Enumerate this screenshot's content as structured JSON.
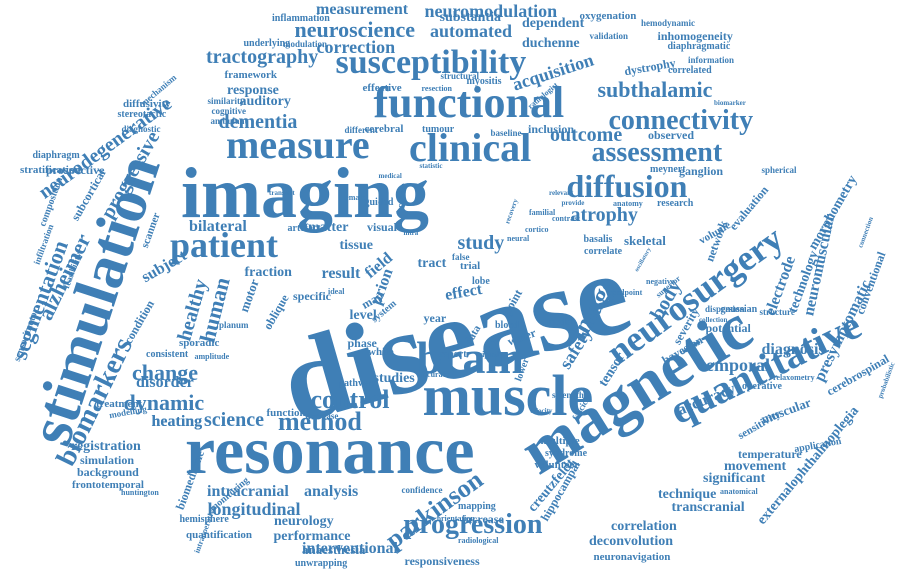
{
  "cloud": {
    "color": "#3f7fb6",
    "words": [
      "disease",
      "imaging",
      "resonance",
      "magnetic",
      "stimulation",
      "muscle",
      "functional",
      "brain",
      "clinical",
      "measure",
      "quantitative",
      "neurosurgery",
      "patient",
      "susceptibility",
      "diffusion",
      "assessment",
      "connectivity",
      "parkinson",
      "progression",
      "biomarkers",
      "method",
      "control",
      "segmentation",
      "alzheimer",
      "neuroscience",
      "measurement",
      "neuromodulation",
      "tractography",
      "neurodegenerative",
      "progressive",
      "dementia",
      "subthalamic",
      "acquisition",
      "outcome",
      "automated",
      "correction",
      "atrophy",
      "image",
      "study",
      "healthy",
      "human",
      "change",
      "dynamic",
      "science",
      "heating",
      "intracranial",
      "analysis",
      "longitudinal",
      "interventional",
      "technique",
      "significant",
      "presymptomatic",
      "neuromuscular",
      "electrode",
      "technology",
      "morphometry",
      "temporal",
      "diagnosis",
      "accuracy",
      "safety",
      "tensor",
      "body",
      "registration",
      "simulation",
      "background",
      "frontotemporal",
      "biomedicine",
      "monitoring",
      "hemisphere",
      "quantification",
      "performance",
      "neurology",
      "anaesthesia",
      "unwrapping",
      "responsiveness",
      "deconvolution",
      "correlation",
      "neuronavigation",
      "transcranial",
      "movement",
      "temperature",
      "externalophthalmoplegia",
      "cerebrospinal",
      "conventional",
      "dystrophy",
      "duchenne",
      "dependent",
      "substantia",
      "inhomogeneity",
      "inflammation",
      "oxygenation",
      "hemodynamic",
      "underlying",
      "modulation",
      "framework",
      "response",
      "auditory",
      "effective",
      "structural",
      "myositis",
      "inclusion",
      "baseline",
      "tumour",
      "cerebral",
      "different",
      "observed",
      "ganglion",
      "meynert",
      "spherical",
      "research",
      "network",
      "evaluation",
      "volume",
      "muscular",
      "sensitivity",
      "application",
      "operative",
      "bayesian",
      "severity",
      "potential",
      "gaussian",
      "structure",
      "skeletal",
      "basalis",
      "correlate",
      "tissue",
      "matter",
      "bilateral",
      "subject",
      "fraction",
      "motor",
      "specific",
      "result",
      "field",
      "prion",
      "tract",
      "trial",
      "lobe",
      "effect",
      "data",
      "water",
      "model",
      "phase",
      "white",
      "report",
      "signal",
      "blood",
      "multiple",
      "syndrome",
      "volunteer",
      "studies",
      "pathway",
      "function",
      "decrease",
      "heating",
      "sporadic",
      "consistent",
      "condition",
      "treatment",
      "disorder",
      "scanner",
      "visual",
      "cohort",
      "guided",
      "female",
      "diaphragm",
      "stratification",
      "prospective",
      "subcortical",
      "composition",
      "infiltration",
      "feasibility",
      "sensorimotor",
      "huntington",
      "intraoperative",
      "modelling",
      "diffusivity",
      "stereotactic",
      "mechanism",
      "diagnostic",
      "similarity",
      "cognitive",
      "ambulant",
      "resection",
      "validation",
      "diaphragmatic",
      "information",
      "correlated",
      "radiologist",
      "biomarker",
      "statistic",
      "confidence",
      "increase",
      "mapping",
      "orientation",
      "radiological",
      "cortico",
      "neural",
      "familial",
      "contrast",
      "anatomy",
      "endpoint",
      "negative",
      "dispersion",
      "relaxometry",
      "anatomical",
      "level",
      "year",
      "point",
      "map",
      "system",
      "artefact",
      "amplitude",
      "planum",
      "oblique",
      "ideal",
      "lower",
      "hippocampal",
      "creutzfeldt",
      "accurate",
      "strength",
      "velocity",
      "fascicle",
      "probabilistic",
      "connection",
      "relevant",
      "provide",
      "intra",
      "false",
      "transmit",
      "oscillatory",
      "collection",
      "superior",
      "medical",
      "recovery"
    ]
  }
}
